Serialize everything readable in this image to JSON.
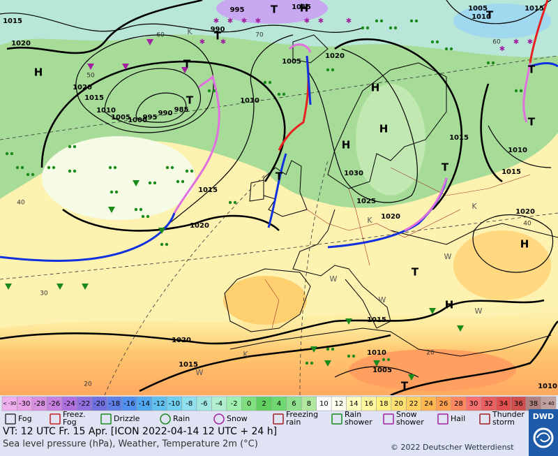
{
  "map": {
    "isobar_labels": [
      1015,
      1020,
      995,
      990,
      1015,
      1020,
      1005,
      1020,
      1015,
      1010,
      1005,
      1000,
      995,
      990,
      985,
      1010,
      1015,
      1020,
      1030,
      1025,
      1020,
      1015,
      1010,
      1015,
      1020,
      1015,
      1010,
      1005,
      1020,
      1015,
      1010,
      1005,
      1010,
      1015
    ],
    "isotherm_labels": [
      60,
      50,
      40,
      30,
      20,
      20,
      40,
      70,
      60
    ],
    "pressure_centers": [
      "H",
      "T",
      "T",
      "T",
      "T",
      "H",
      "H",
      "H",
      "T",
      "T",
      "H",
      "T",
      "H",
      "T",
      "T",
      "T",
      "T",
      "H"
    ],
    "other_marks": [
      "K",
      "K",
      "K",
      "K",
      "W",
      "W",
      "W",
      "W",
      "W"
    ]
  },
  "legend": {
    "temperature_scale": [
      "< -30",
      -30,
      -28,
      -26,
      -24,
      -22,
      -20,
      -18,
      -16,
      -14,
      -12,
      -10,
      -8,
      -6,
      -4,
      -2,
      0,
      2,
      4,
      6,
      8,
      10,
      12,
      14,
      16,
      18,
      20,
      22,
      24,
      26,
      28,
      30,
      32,
      34,
      36,
      38,
      "> 40"
    ],
    "temperature_colors": [
      "#f0b0f0",
      "#e8a0e8",
      "#d890e0",
      "#c880e0",
      "#b070e0",
      "#9070e0",
      "#7070e0",
      "#6080e8",
      "#5090f0",
      "#50a8f0",
      "#60c0f0",
      "#70d0f0",
      "#90e0f0",
      "#a0e8e0",
      "#b0f0d0",
      "#a0f0b0",
      "#80e080",
      "#60d060",
      "#70d870",
      "#90e090",
      "#b0e8a0",
      "#ffffff",
      "#fffff0",
      "#ffffc0",
      "#fff8a0",
      "#fff080",
      "#ffe070",
      "#ffd060",
      "#ffb850",
      "#ffa050",
      "#ff8860",
      "#f87070",
      "#e86060",
      "#e05050",
      "#d05050",
      "#b08080",
      "#c0a0a0"
    ],
    "weather": [
      "Fog",
      "Freez. Fog",
      "Drizzle",
      "Rain",
      "Snow",
      "Freezing rain",
      "Rain shower",
      "Snow shower",
      "Hail",
      "Thunder storm"
    ]
  },
  "footer": {
    "valid_time": "VT: 12 UTC Fr.  15 Apr. [ICON 2022-04-14  12 UTC + 24 h]",
    "description": "Sea level pressure (hPa), Weather, Temperature 2m (°C)",
    "copyright": "© 2022 Deutscher Wetterdienst",
    "logo": "DWD"
  }
}
